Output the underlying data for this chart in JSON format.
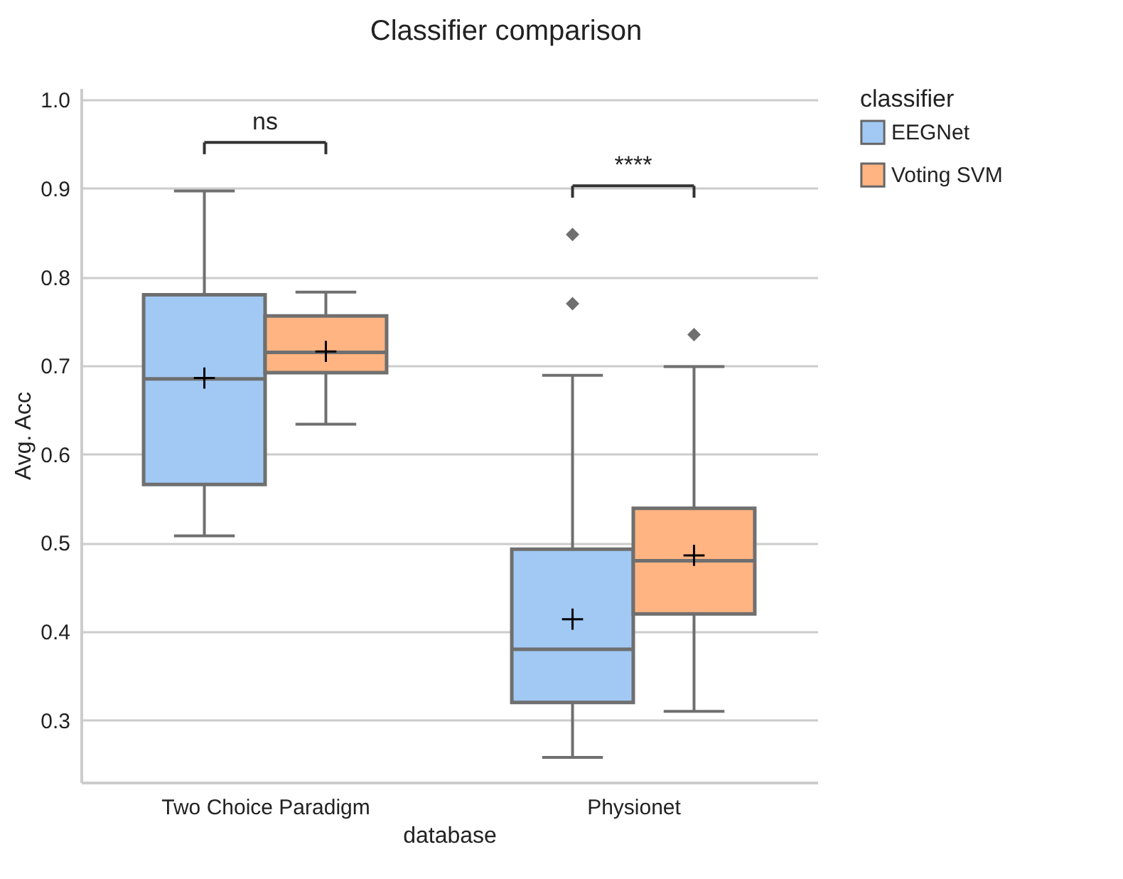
{
  "chart_data": {
    "type": "box",
    "title": "Classifier comparison",
    "xlabel": "database",
    "ylabel": "Avg. Acc",
    "legend_title": "classifier",
    "legend": "right",
    "grid": "y",
    "marker": "diamond",
    "categories": [
      "Two Choice Paradigm",
      "Physionet"
    ],
    "ylim": [
      0.23,
      1.013
    ],
    "yticks": [
      0.3,
      0.4,
      0.5,
      0.6,
      0.7,
      0.8,
      0.9,
      {
        "value": 1,
        "label": "1.0"
      }
    ],
    "series": [
      {
        "name": "EEGNet",
        "color": "#a1c9f4",
        "boxes": [
          {
            "low": 0.508,
            "q1": 0.566,
            "median": 0.685,
            "q3": 0.78,
            "high": 0.897,
            "mean": 0.686
          },
          {
            "low": 0.258,
            "q1": 0.32,
            "median": 0.38,
            "q3": 0.493,
            "high": 0.689,
            "mean": 0.414,
            "outliers": [
              0.848,
              0.77
            ]
          }
        ]
      },
      {
        "name": "Voting SVM",
        "color": "#ffb482",
        "boxes": [
          {
            "low": 0.634,
            "q1": 0.692,
            "median": 0.715,
            "q3": 0.756,
            "high": 0.783,
            "mean": 0.716
          },
          {
            "low": 0.31,
            "q1": 0.42,
            "median": 0.48,
            "q3": 0.539,
            "high": 0.699,
            "mean": 0.486,
            "outliers": [
              0.735
            ]
          }
        ]
      }
    ],
    "annotations": [
      "ns",
      "****"
    ]
  }
}
